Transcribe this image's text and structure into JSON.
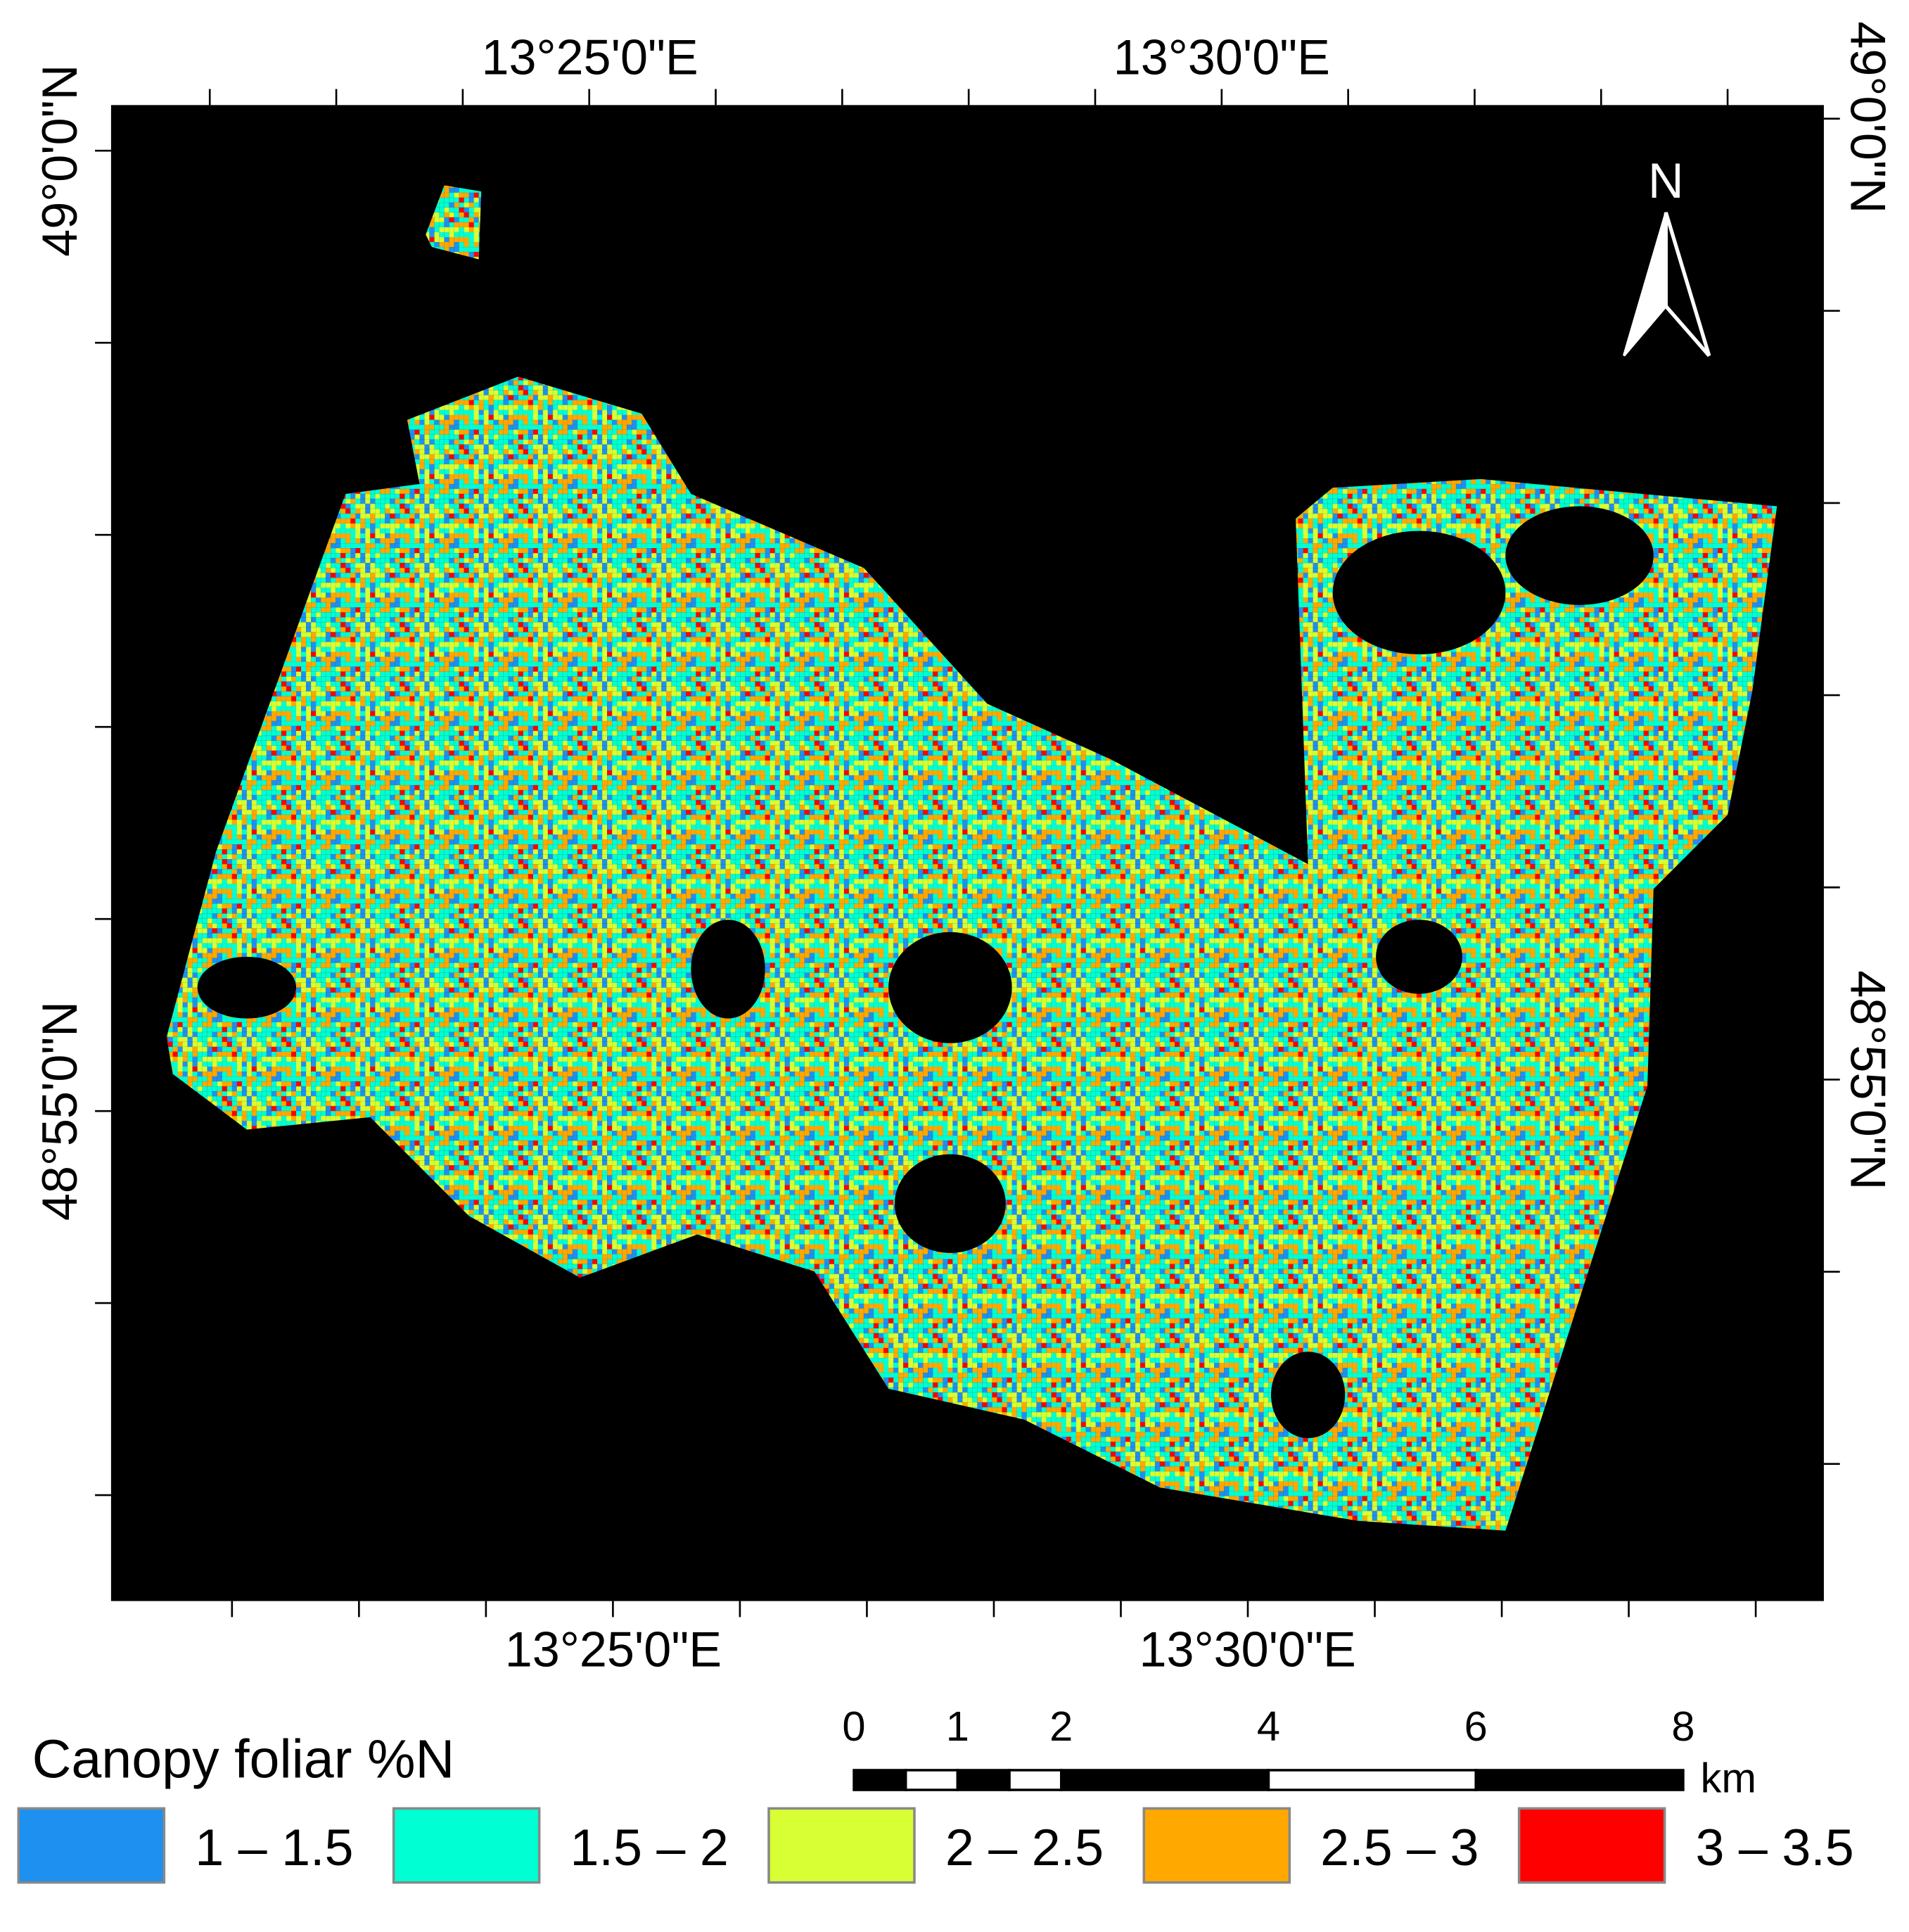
{
  "map": {
    "top_axis_labels": [
      "13°25'0\"E",
      "13°30'0\"E"
    ],
    "bottom_axis_labels": [
      "13°25'0\"E",
      "13°30'0\"E"
    ],
    "left_axis_labels": [
      "49°0'0\"N",
      "48°55'0\"N"
    ],
    "right_axis_labels": [
      "49°0'0\"N",
      "48°55'0\"N"
    ],
    "north_arrow": "N",
    "scale_bar": {
      "ticks": [
        0,
        1,
        2,
        4,
        6,
        8
      ],
      "unit": "km"
    },
    "legend": {
      "title": "Canopy foliar %N",
      "items": [
        {
          "label": "1 – 1.5",
          "color": "#1e90f0"
        },
        {
          "label": "1.5 – 2",
          "color": "#00ffd2"
        },
        {
          "label": "2 – 2.5",
          "color": "#d8ff33"
        },
        {
          "label": "2.5 – 3",
          "color": "#ffa800"
        },
        {
          "label": "3 – 3.5",
          "color": "#ff0000"
        }
      ]
    }
  }
}
